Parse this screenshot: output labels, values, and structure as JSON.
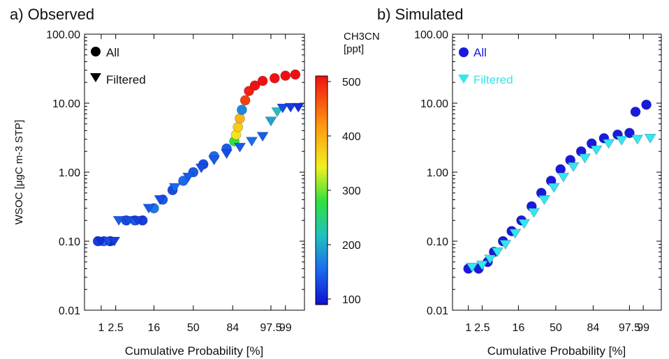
{
  "chart_data": [
    {
      "type": "scatter",
      "title": "a) Observed",
      "xlabel": "Cumulative Probability [%]",
      "ylabel": "WSOC [μgC m-3 STP]",
      "yscale": "log",
      "ylim": [
        0.01,
        100
      ],
      "y_ticks": [
        "0.01",
        "0.10",
        "1.00",
        "10.00",
        "100.00"
      ],
      "x_ticks": [
        "1",
        "2.5",
        "16",
        "50",
        "84",
        "97.5",
        "99"
      ],
      "legend": [
        {
          "label": "All",
          "marker": "circle"
        },
        {
          "label": "Filtered",
          "marker": "triangle-down"
        }
      ],
      "legend_position": "top-left",
      "colorbar": {
        "title": "CH3CN",
        "unit": "[ppt]",
        "ticks": [
          "100",
          "200",
          "300",
          "400",
          "500"
        ],
        "range": [
          100,
          500
        ]
      },
      "series": [
        {
          "name": "All",
          "marker": "circle",
          "points": [
            {
              "x": 0.8,
              "y": 0.1,
              "c": 130
            },
            {
              "x": 1.2,
              "y": 0.1,
              "c": 160
            },
            {
              "x": 1.8,
              "y": 0.1,
              "c": 120
            },
            {
              "x": 4.5,
              "y": 0.2,
              "c": 140
            },
            {
              "x": 7,
              "y": 0.2,
              "c": 150
            },
            {
              "x": 10,
              "y": 0.2,
              "c": 130
            },
            {
              "x": 16,
              "y": 0.3,
              "c": 170
            },
            {
              "x": 22,
              "y": 0.4,
              "c": 150
            },
            {
              "x": 30,
              "y": 0.55,
              "c": 140
            },
            {
              "x": 40,
              "y": 0.75,
              "c": 160
            },
            {
              "x": 50,
              "y": 1.0,
              "c": 150
            },
            {
              "x": 60,
              "y": 1.3,
              "c": 140
            },
            {
              "x": 70,
              "y": 1.7,
              "c": 160
            },
            {
              "x": 80,
              "y": 2.2,
              "c": 150
            },
            {
              "x": 85,
              "y": 2.8,
              "c": 280
            },
            {
              "x": 86,
              "y": 3.5,
              "c": 350
            },
            {
              "x": 87,
              "y": 4.5,
              "c": 370
            },
            {
              "x": 88,
              "y": 6.0,
              "c": 390
            },
            {
              "x": 89,
              "y": 8.0,
              "c": 180
            },
            {
              "x": 90.5,
              "y": 11,
              "c": 470
            },
            {
              "x": 92,
              "y": 15,
              "c": 490
            },
            {
              "x": 94,
              "y": 18,
              "c": 500
            },
            {
              "x": 96,
              "y": 21,
              "c": 500
            },
            {
              "x": 98,
              "y": 23,
              "c": 500
            },
            {
              "x": 99,
              "y": 25,
              "c": 500
            },
            {
              "x": 99.5,
              "y": 26,
              "c": 500
            }
          ]
        },
        {
          "name": "Filtered",
          "marker": "triangle-down",
          "points": [
            {
              "x": 1.0,
              "y": 0.1,
              "c": 120
            },
            {
              "x": 1.6,
              "y": 0.1,
              "c": 140
            },
            {
              "x": 2.3,
              "y": 0.1,
              "c": 130
            },
            {
              "x": 3,
              "y": 0.2,
              "c": 150
            },
            {
              "x": 5,
              "y": 0.2,
              "c": 140
            },
            {
              "x": 8,
              "y": 0.2,
              "c": 130
            },
            {
              "x": 13,
              "y": 0.3,
              "c": 150
            },
            {
              "x": 20,
              "y": 0.4,
              "c": 140
            },
            {
              "x": 32,
              "y": 0.6,
              "c": 160
            },
            {
              "x": 45,
              "y": 0.85,
              "c": 150
            },
            {
              "x": 58,
              "y": 1.15,
              "c": 140
            },
            {
              "x": 70,
              "y": 1.5,
              "c": 150
            },
            {
              "x": 80,
              "y": 1.85,
              "c": 140
            },
            {
              "x": 88,
              "y": 2.3,
              "c": 150
            },
            {
              "x": 93,
              "y": 2.8,
              "c": 160
            },
            {
              "x": 96,
              "y": 3.3,
              "c": 150
            },
            {
              "x": 97.5,
              "y": 5.5,
              "c": 200
            },
            {
              "x": 98.3,
              "y": 7.5,
              "c": 220
            },
            {
              "x": 98.8,
              "y": 8.5,
              "c": 140
            },
            {
              "x": 99.3,
              "y": 8.7,
              "c": 130
            },
            {
              "x": 99.6,
              "y": 8.7,
              "c": 120
            }
          ]
        }
      ]
    },
    {
      "type": "scatter",
      "title": "b) Simulated",
      "xlabel": "Cumulative Probability [%]",
      "yscale": "log",
      "ylim": [
        0.01,
        100
      ],
      "y_ticks": [
        "0.01",
        "0.10",
        "1.00",
        "10.00",
        "100.00"
      ],
      "x_ticks": [
        "1",
        "2.5",
        "16",
        "50",
        "84",
        "97.5",
        "99"
      ],
      "legend": [
        {
          "label": "All",
          "marker": "circle",
          "color": "#1a1adc"
        },
        {
          "label": "Filtered",
          "marker": "triangle-down",
          "color": "#33e6f0"
        }
      ],
      "legend_position": "top-left",
      "series": [
        {
          "name": "All",
          "marker": "circle",
          "color": "#1a1adc",
          "points": [
            {
              "x": 1.0,
              "y": 0.04
            },
            {
              "x": 2.0,
              "y": 0.04
            },
            {
              "x": 3.5,
              "y": 0.05
            },
            {
              "x": 5,
              "y": 0.07
            },
            {
              "x": 8,
              "y": 0.1
            },
            {
              "x": 12,
              "y": 0.14
            },
            {
              "x": 18,
              "y": 0.2
            },
            {
              "x": 26,
              "y": 0.32
            },
            {
              "x": 35,
              "y": 0.5
            },
            {
              "x": 45,
              "y": 0.75
            },
            {
              "x": 55,
              "y": 1.1
            },
            {
              "x": 65,
              "y": 1.5
            },
            {
              "x": 75,
              "y": 2.0
            },
            {
              "x": 83,
              "y": 2.6
            },
            {
              "x": 90,
              "y": 3.1
            },
            {
              "x": 95,
              "y": 3.5
            },
            {
              "x": 97.5,
              "y": 3.7
            },
            {
              "x": 98.3,
              "y": 7.5
            },
            {
              "x": 99.2,
              "y": 9.5
            }
          ]
        },
        {
          "name": "Filtered",
          "marker": "triangle-down",
          "color": "#33e6f0",
          "points": [
            {
              "x": 1.3,
              "y": 0.042
            },
            {
              "x": 2.5,
              "y": 0.045
            },
            {
              "x": 4,
              "y": 0.055
            },
            {
              "x": 6,
              "y": 0.07
            },
            {
              "x": 9,
              "y": 0.09
            },
            {
              "x": 14,
              "y": 0.13
            },
            {
              "x": 20,
              "y": 0.18
            },
            {
              "x": 28,
              "y": 0.26
            },
            {
              "x": 38,
              "y": 0.4
            },
            {
              "x": 48,
              "y": 0.6
            },
            {
              "x": 58,
              "y": 0.85
            },
            {
              "x": 68,
              "y": 1.2
            },
            {
              "x": 78,
              "y": 1.6
            },
            {
              "x": 86,
              "y": 2.1
            },
            {
              "x": 92,
              "y": 2.6
            },
            {
              "x": 96,
              "y": 2.9
            },
            {
              "x": 98.5,
              "y": 3.0
            },
            {
              "x": 99.4,
              "y": 3.1
            }
          ]
        }
      ]
    }
  ]
}
